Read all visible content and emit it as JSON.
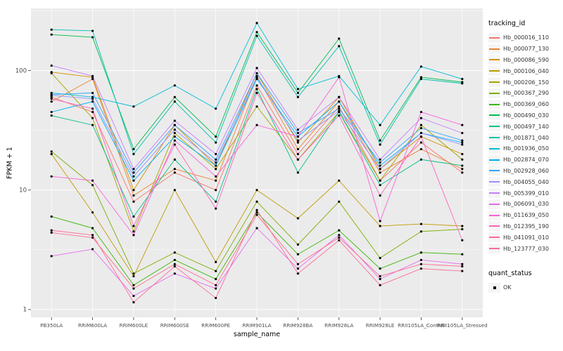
{
  "figure": {
    "colors": {
      "panel_bg": "#EBEBEB",
      "grid": "#FFFFFF",
      "tick_text": "#4D4D4D",
      "point": "#000000"
    }
  },
  "legend": {
    "tracking_title": "tracking_id",
    "quant_title": "quant_status",
    "quant_items": [
      "OK"
    ]
  },
  "chart_data": {
    "type": "line",
    "title": "",
    "xlabel": "sample_name",
    "ylabel": "FPKM + 1",
    "y_scale": "log10",
    "ylim": [
      1,
      280
    ],
    "y_ticks": [
      1,
      10,
      100
    ],
    "grid": true,
    "legend_position": "right",
    "point_shape_legend": {
      "title": "quant_status",
      "items": [
        "OK"
      ],
      "color": "#000000"
    },
    "categories": [
      "PB350LA",
      "RRIM600LA",
      "RRIM600LE",
      "RRIM600SE",
      "RRIM600PE",
      "RRIM901LA",
      "RRIM928BA",
      "RRIM928LA",
      "RRIM928LE",
      "RRII105LA_Control",
      "RRII105LA_Stressed"
    ],
    "series": [
      {
        "name": "Hb_000016_110",
        "color": "#F8766D",
        "values": [
          60,
          45,
          8,
          14,
          10,
          75,
          20,
          50,
          12,
          25,
          14
        ]
      },
      {
        "name": "Hb_000077_130",
        "color": "#EA8331",
        "values": [
          55,
          85,
          9,
          15,
          12,
          90,
          22,
          55,
          14,
          22,
          15
        ]
      },
      {
        "name": "Hb_000086_590",
        "color": "#D89000",
        "values": [
          97,
          88,
          10,
          35,
          16,
          95,
          25,
          60,
          15,
          28,
          20
        ]
      },
      {
        "name": "Hb_000106_040",
        "color": "#C09B00",
        "values": [
          20,
          6.5,
          1.9,
          10,
          2.5,
          10,
          5.8,
          12,
          5,
          5.2,
          5
        ]
      },
      {
        "name": "Hb_000206_150",
        "color": "#A3A500",
        "values": [
          95,
          40,
          4.5,
          30,
          15,
          50,
          18,
          45,
          12,
          35,
          18
        ]
      },
      {
        "name": "Hb_000367_290",
        "color": "#7CAE00",
        "values": [
          21,
          11,
          2,
          3,
          2.1,
          8,
          3.5,
          8,
          2.7,
          4.5,
          4.7
        ]
      },
      {
        "name": "Hb_000369_060",
        "color": "#39B600",
        "values": [
          6,
          4.8,
          1.6,
          2.6,
          1.8,
          6.5,
          2.9,
          4.6,
          2.2,
          3,
          2.9
        ]
      },
      {
        "name": "Hb_000490_030",
        "color": "#00BB4E",
        "values": [
          200,
          190,
          22,
          60,
          28,
          210,
          65,
          185,
          26,
          88,
          80
        ]
      },
      {
        "name": "Hb_000497_140",
        "color": "#00C087",
        "values": [
          42,
          35,
          6,
          18,
          8,
          70,
          14,
          45,
          11,
          18,
          16
        ]
      },
      {
        "name": "Hb_001871_040",
        "color": "#00C0AF",
        "values": [
          220,
          215,
          20,
          55,
          25,
          195,
          60,
          160,
          24,
          85,
          78
        ]
      },
      {
        "name": "Hb_001936_050",
        "color": "#00BCD8",
        "values": [
          65,
          60,
          50,
          75,
          48,
          250,
          70,
          90,
          35,
          108,
          85
        ]
      },
      {
        "name": "Hb_002874_070",
        "color": "#00B0F6",
        "values": [
          45,
          55,
          12,
          28,
          16,
          85,
          28,
          55,
          16,
          30,
          25
        ]
      },
      {
        "name": "Hb_002928_060",
        "color": "#35A2FF",
        "values": [
          63,
          65,
          14,
          35,
          18,
          95,
          30,
          48,
          17,
          33,
          26
        ]
      },
      {
        "name": "Hb_004055_040",
        "color": "#9590FF",
        "values": [
          62,
          58,
          13,
          32,
          17,
          88,
          26,
          46,
          15,
          30,
          24
        ]
      },
      {
        "name": "Hb_005399_010",
        "color": "#C77CFF",
        "values": [
          110,
          90,
          15,
          38,
          20,
          105,
          32,
          60,
          18,
          40,
          30
        ]
      },
      {
        "name": "Hb_006091_030",
        "color": "#E76BF3",
        "values": [
          2.8,
          3.2,
          1.3,
          2,
          1.5,
          4.8,
          2.2,
          4.2,
          1.8,
          2.6,
          2.4
        ]
      },
      {
        "name": "Hb_011639_050",
        "color": "#FA62DB",
        "values": [
          13,
          12,
          4.2,
          26,
          13,
          35,
          28,
          88,
          5.5,
          45,
          35
        ]
      },
      {
        "name": "Hb_012395_190",
        "color": "#FF62BC",
        "values": [
          58,
          48,
          5,
          24,
          7,
          65,
          18,
          42,
          9,
          28,
          3.8
        ]
      },
      {
        "name": "Hb_041091_010",
        "color": "#FF6A98",
        "values": [
          4.6,
          4.2,
          1.15,
          2.3,
          1.25,
          6.8,
          2,
          3.8,
          1.6,
          2.2,
          2.1
        ]
      },
      {
        "name": "Hb_123777_030",
        "color": "#FF6C91",
        "values": [
          4.4,
          4,
          1.5,
          2.4,
          1.6,
          6.2,
          2.4,
          4,
          1.9,
          2.4,
          2.3
        ]
      }
    ]
  }
}
